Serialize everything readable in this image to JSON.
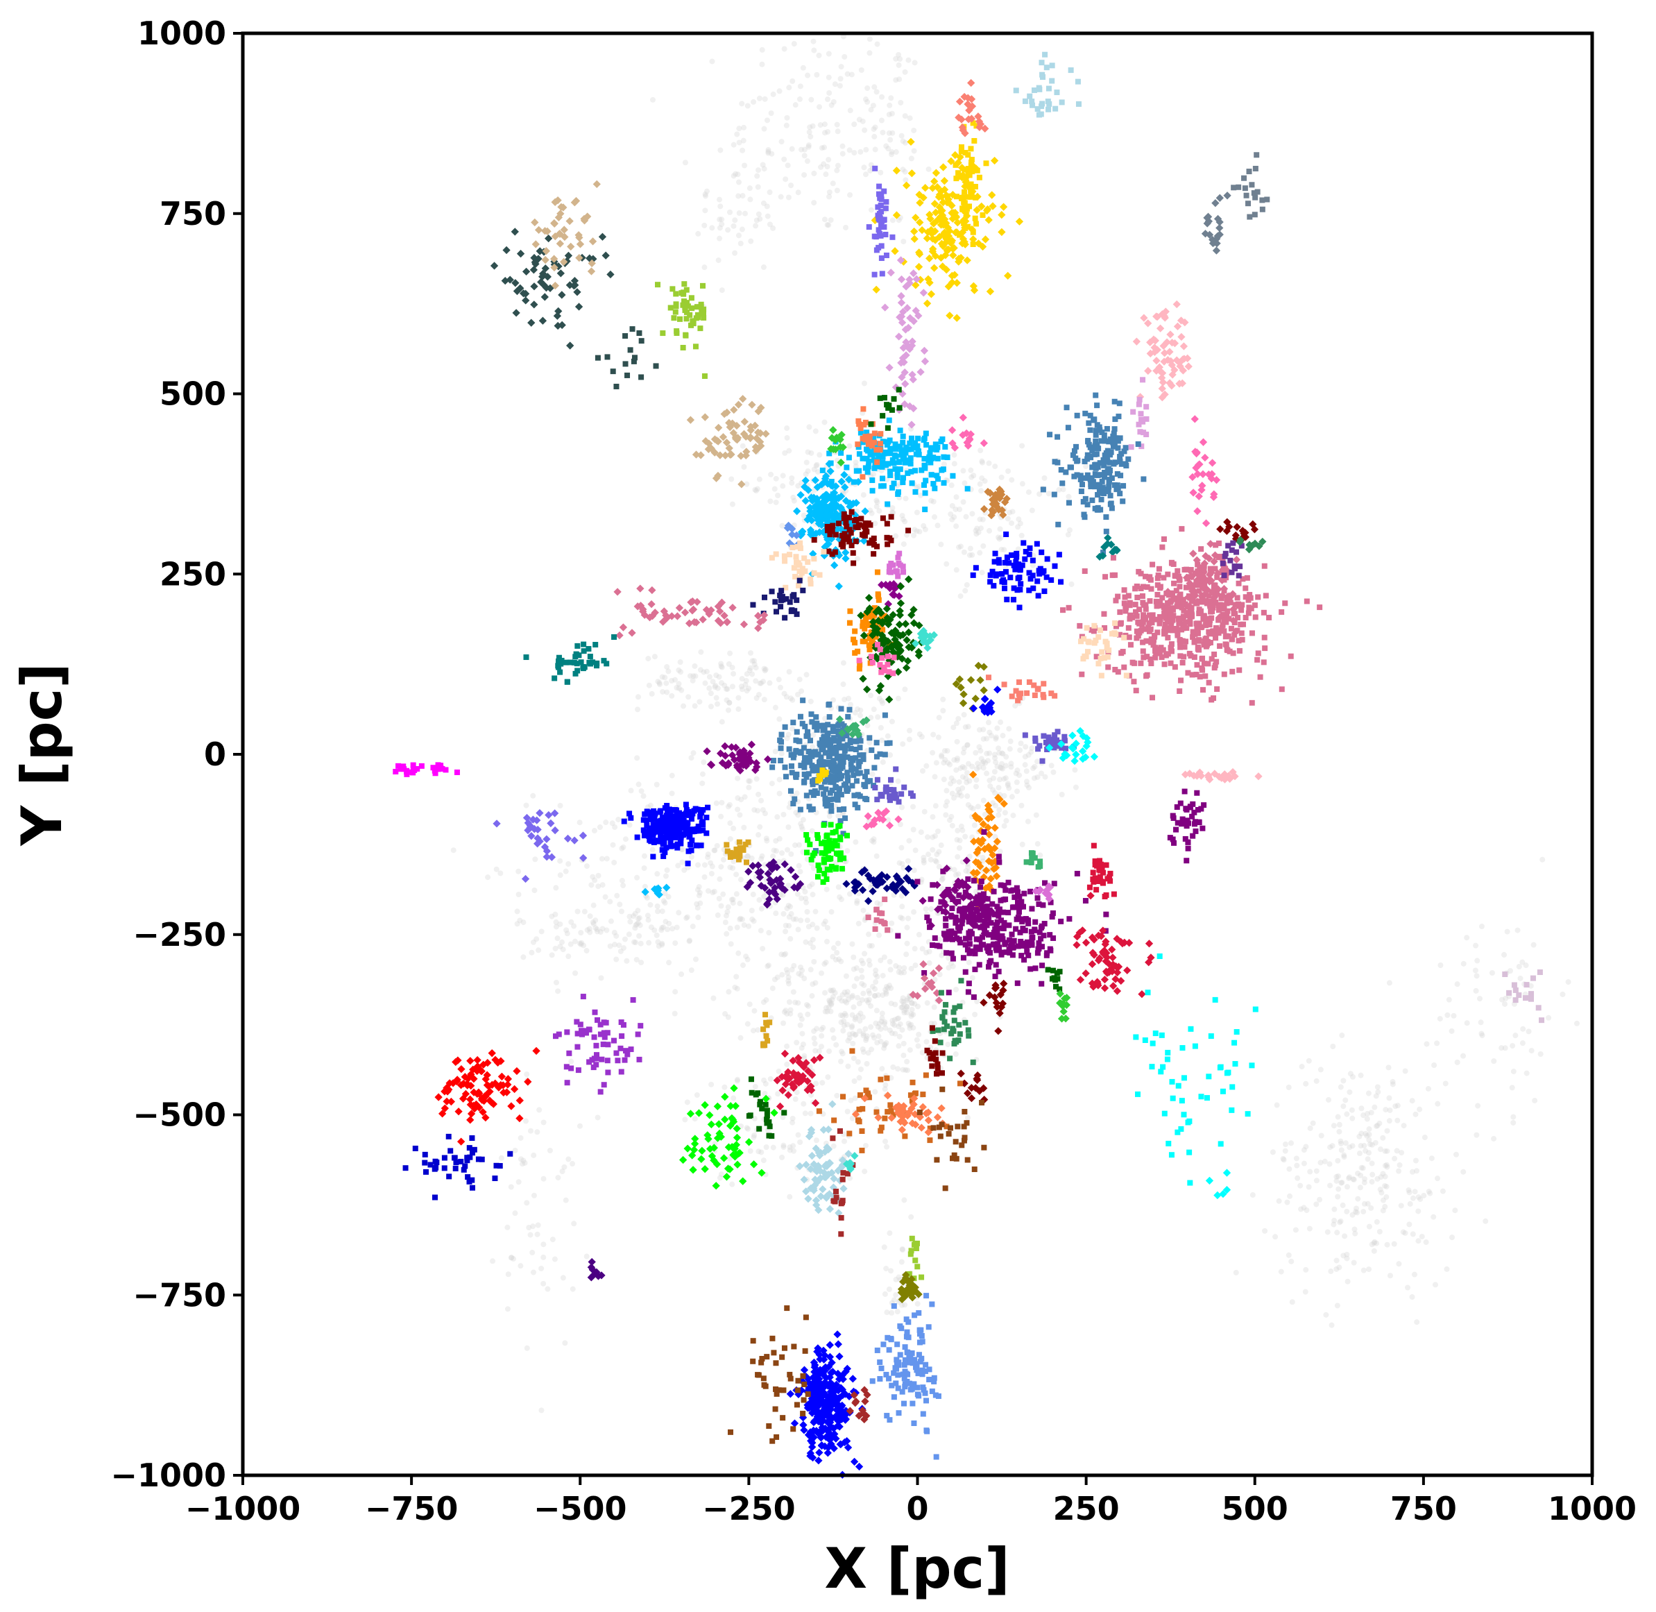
{
  "chart_data": {
    "type": "scatter",
    "xlabel": "X [pc]",
    "ylabel": "Y [pc]",
    "xlim": [
      -1000,
      1000
    ],
    "ylim": [
      -1000,
      1000
    ],
    "xticks": [
      -1000,
      -750,
      -500,
      -250,
      0,
      250,
      500,
      750,
      1000
    ],
    "yticks": [
      -1000,
      -750,
      -500,
      -250,
      0,
      250,
      500,
      750,
      1000
    ],
    "xtick_labels": [
      "−1000",
      "−750",
      "−500",
      "−250",
      "0",
      "250",
      "500",
      "750",
      "1000"
    ],
    "ytick_labels": [
      "−1000",
      "−750",
      "−500",
      "−250",
      "0",
      "250",
      "500",
      "750",
      "1000"
    ],
    "grid": false,
    "legend": "none",
    "background_field": {
      "color": "#d3d3d3",
      "regions": [
        {
          "cx": -150,
          "cy": 870,
          "sx": 60,
          "sy": 80,
          "n": 120
        },
        {
          "cx": -40,
          "cy": 850,
          "sx": 25,
          "sy": 80,
          "n": 60
        },
        {
          "cx": -270,
          "cy": 760,
          "sx": 30,
          "sy": 60,
          "n": 60
        },
        {
          "cx": -150,
          "cy": 380,
          "sx": 50,
          "sy": 40,
          "n": 90
        },
        {
          "cx": 0,
          "cy": 350,
          "sx": 80,
          "sy": 40,
          "n": 90
        },
        {
          "cx": 120,
          "cy": 320,
          "sx": 60,
          "sy": 40,
          "n": 70
        },
        {
          "cx": -290,
          "cy": 100,
          "sx": 60,
          "sy": 20,
          "n": 110
        },
        {
          "cx": -110,
          "cy": 30,
          "sx": 40,
          "sy": 30,
          "n": 80
        },
        {
          "cx": 100,
          "cy": -20,
          "sx": 60,
          "sy": 40,
          "n": 180
        },
        {
          "cx": -250,
          "cy": -150,
          "sx": 140,
          "sy": 70,
          "n": 360
        },
        {
          "cx": 50,
          "cy": -150,
          "sx": 40,
          "sy": 60,
          "n": 120
        },
        {
          "cx": -50,
          "cy": -360,
          "sx": 60,
          "sy": 50,
          "n": 230
        },
        {
          "cx": -150,
          "cy": -340,
          "sx": 70,
          "sy": 80,
          "n": 170
        },
        {
          "cx": -200,
          "cy": -520,
          "sx": 70,
          "sy": 40,
          "n": 80
        },
        {
          "cx": -450,
          "cy": -250,
          "sx": 70,
          "sy": 30,
          "n": 110
        },
        {
          "cx": -560,
          "cy": -620,
          "sx": 30,
          "sy": 100,
          "n": 60
        },
        {
          "cx": 660,
          "cy": -580,
          "sx": 70,
          "sy": 80,
          "n": 260
        },
        {
          "cx": 860,
          "cy": -350,
          "sx": 50,
          "sy": 70,
          "n": 70
        },
        {
          "cx": -30,
          "cy": -730,
          "sx": 15,
          "sy": 40,
          "n": 30
        }
      ]
    },
    "series": [
      {
        "color": "#ffd700",
        "cx": 45,
        "cy": 730,
        "sx": 35,
        "sy": 50,
        "n": 170
      },
      {
        "color": "#ffd700",
        "cx": 75,
        "cy": 790,
        "sx": 12,
        "sy": 40,
        "n": 60
      },
      {
        "color": "#dda0dd",
        "cx": -15,
        "cy": 580,
        "sx": 12,
        "sy": 50,
        "n": 50
      },
      {
        "color": "#7b68ee",
        "cx": -55,
        "cy": 740,
        "sx": 8,
        "sy": 40,
        "n": 40
      },
      {
        "color": "#fa8072",
        "cx": 75,
        "cy": 880,
        "sx": 15,
        "sy": 20,
        "n": 20
      },
      {
        "color": "#add8e6",
        "cx": 190,
        "cy": 920,
        "sx": 20,
        "sy": 25,
        "n": 30
      },
      {
        "color": "#708090",
        "cx": 440,
        "cy": 730,
        "sx": 10,
        "sy": 20,
        "n": 20
      },
      {
        "color": "#708090",
        "cx": 500,
        "cy": 780,
        "sx": 15,
        "sy": 20,
        "n": 18
      },
      {
        "color": "#2f4f4f",
        "cx": -550,
        "cy": 660,
        "sx": 40,
        "sy": 30,
        "n": 60
      },
      {
        "color": "#2f4f4f",
        "cx": -430,
        "cy": 550,
        "sx": 20,
        "sy": 15,
        "n": 15
      },
      {
        "color": "#d2b48c",
        "cx": -530,
        "cy": 720,
        "sx": 30,
        "sy": 25,
        "n": 40
      },
      {
        "color": "#9acd32",
        "cx": -340,
        "cy": 610,
        "sx": 15,
        "sy": 25,
        "n": 50
      },
      {
        "color": "#ffb6c1",
        "cx": 370,
        "cy": 550,
        "sx": 20,
        "sy": 30,
        "n": 60
      },
      {
        "color": "#dda0dd",
        "cx": 330,
        "cy": 460,
        "sx": 10,
        "sy": 20,
        "n": 15
      },
      {
        "color": "#d2b48c",
        "cx": -270,
        "cy": 440,
        "sx": 25,
        "sy": 25,
        "n": 60
      },
      {
        "color": "#4682b4",
        "cx": 270,
        "cy": 400,
        "sx": 25,
        "sy": 35,
        "n": 180
      },
      {
        "color": "#ff69b4",
        "cx": 420,
        "cy": 390,
        "sx": 10,
        "sy": 25,
        "n": 25
      },
      {
        "color": "#00bfff",
        "cx": -30,
        "cy": 410,
        "sx": 40,
        "sy": 20,
        "n": 170
      },
      {
        "color": "#00bfff",
        "cx": -130,
        "cy": 330,
        "sx": 20,
        "sy": 30,
        "n": 180
      },
      {
        "color": "#ff7f50",
        "cx": -70,
        "cy": 440,
        "sx": 8,
        "sy": 20,
        "n": 25
      },
      {
        "color": "#32cd32",
        "cx": -120,
        "cy": 430,
        "sx": 5,
        "sy": 15,
        "n": 12
      },
      {
        "color": "#006400",
        "cx": -40,
        "cy": 480,
        "sx": 8,
        "sy": 15,
        "n": 12
      },
      {
        "color": "#ff69b4",
        "cx": 70,
        "cy": 440,
        "sx": 15,
        "sy": 10,
        "n": 12
      },
      {
        "color": "#800000",
        "cx": -90,
        "cy": 305,
        "sx": 25,
        "sy": 15,
        "n": 70
      },
      {
        "color": "#6495ed",
        "cx": -185,
        "cy": 300,
        "sx": 8,
        "sy": 10,
        "n": 8
      },
      {
        "color": "#ffdab9",
        "cx": -175,
        "cy": 260,
        "sx": 20,
        "sy": 15,
        "n": 30
      },
      {
        "color": "#cd853f",
        "cx": 120,
        "cy": 355,
        "sx": 8,
        "sy": 12,
        "n": 25
      },
      {
        "color": "#0000ff",
        "cx": 150,
        "cy": 250,
        "sx": 30,
        "sy": 20,
        "n": 70
      },
      {
        "color": "#008080",
        "cx": 275,
        "cy": 285,
        "sx": 10,
        "sy": 8,
        "n": 10
      },
      {
        "color": "#db7093",
        "cx": 400,
        "cy": 190,
        "sx": 60,
        "sy": 40,
        "n": 520
      },
      {
        "color": "#db7093",
        "cx": 430,
        "cy": 240,
        "sx": 20,
        "sy": 20,
        "n": 60
      },
      {
        "color": "#ffdab9",
        "cx": 270,
        "cy": 150,
        "sx": 20,
        "sy": 15,
        "n": 30
      },
      {
        "color": "#800000",
        "cx": 475,
        "cy": 310,
        "sx": 10,
        "sy": 8,
        "n": 15
      },
      {
        "color": "#663399",
        "cx": 470,
        "cy": 270,
        "sx": 10,
        "sy": 15,
        "n": 15
      },
      {
        "color": "#2e8b57",
        "cx": 490,
        "cy": 290,
        "sx": 10,
        "sy": 5,
        "n": 8
      },
      {
        "color": "#da70d6",
        "cx": -35,
        "cy": 260,
        "sx": 8,
        "sy": 8,
        "n": 15
      },
      {
        "color": "#8b008b",
        "cx": -40,
        "cy": 230,
        "sx": 8,
        "sy": 8,
        "n": 12
      },
      {
        "color": "#ff8c00",
        "cx": -70,
        "cy": 170,
        "sx": 15,
        "sy": 25,
        "n": 60
      },
      {
        "color": "#006400",
        "cx": -40,
        "cy": 160,
        "sx": 20,
        "sy": 30,
        "n": 100
      },
      {
        "color": "#ff69b4",
        "cx": -55,
        "cy": 130,
        "sx": 10,
        "sy": 10,
        "n": 15
      },
      {
        "color": "#40e0d0",
        "cx": 10,
        "cy": 160,
        "sx": 10,
        "sy": 8,
        "n": 15
      },
      {
        "color": "#191970",
        "cx": -200,
        "cy": 210,
        "sx": 15,
        "sy": 12,
        "n": 25
      },
      {
        "color": "#db7093",
        "cx": -320,
        "cy": 195,
        "sx": 50,
        "sy": 15,
        "n": 50
      },
      {
        "color": "#008080",
        "cx": -500,
        "cy": 130,
        "sx": 25,
        "sy": 15,
        "n": 40
      },
      {
        "color": "#808000",
        "cx": 70,
        "cy": 100,
        "sx": 15,
        "sy": 15,
        "n": 12
      },
      {
        "color": "#fa8072",
        "cx": 170,
        "cy": 85,
        "sx": 20,
        "sy": 10,
        "n": 20
      },
      {
        "color": "#0000ff",
        "cx": 105,
        "cy": 70,
        "sx": 8,
        "sy": 12,
        "n": 15
      },
      {
        "color": "#4682b4",
        "cx": -130,
        "cy": -10,
        "sx": 30,
        "sy": 35,
        "n": 330
      },
      {
        "color": "#3cb371",
        "cx": -95,
        "cy": 40,
        "sx": 10,
        "sy": 8,
        "n": 15
      },
      {
        "color": "#ffd700",
        "cx": -140,
        "cy": -30,
        "sx": 5,
        "sy": 5,
        "n": 8
      },
      {
        "color": "#800080",
        "cx": -270,
        "cy": -5,
        "sx": 20,
        "sy": 8,
        "n": 40
      },
      {
        "color": "#6a5acd",
        "cx": -35,
        "cy": -50,
        "sx": 15,
        "sy": 10,
        "n": 25
      },
      {
        "color": "#ff69b4",
        "cx": -60,
        "cy": -90,
        "sx": 12,
        "sy": 8,
        "n": 12
      },
      {
        "color": "#6a5acd",
        "cx": 200,
        "cy": 15,
        "sx": 20,
        "sy": 8,
        "n": 30
      },
      {
        "color": "#00ffff",
        "cx": 230,
        "cy": 10,
        "sx": 15,
        "sy": 10,
        "n": 20
      },
      {
        "color": "#ff00ff",
        "cx": -740,
        "cy": -20,
        "sx": 25,
        "sy": 4,
        "n": 25
      },
      {
        "color": "#7b68ee",
        "cx": -560,
        "cy": -110,
        "sx": 30,
        "sy": 20,
        "n": 30
      },
      {
        "color": "#0000ff",
        "cx": -365,
        "cy": -100,
        "sx": 25,
        "sy": 15,
        "n": 230
      },
      {
        "color": "#00bfff",
        "cx": -380,
        "cy": -190,
        "sx": 8,
        "sy": 5,
        "n": 8
      },
      {
        "color": "#daa520",
        "cx": -265,
        "cy": -135,
        "sx": 10,
        "sy": 8,
        "n": 25
      },
      {
        "color": "#4b0082",
        "cx": -210,
        "cy": -180,
        "sx": 20,
        "sy": 15,
        "n": 40
      },
      {
        "color": "#00ff00",
        "cx": -135,
        "cy": -135,
        "sx": 15,
        "sy": 20,
        "n": 60
      },
      {
        "color": "#000080",
        "cx": -50,
        "cy": -180,
        "sx": 25,
        "sy": 12,
        "n": 40
      },
      {
        "color": "#db7093",
        "cx": -60,
        "cy": -225,
        "sx": 8,
        "sy": 10,
        "n": 12
      },
      {
        "color": "#ff8c00",
        "cx": 100,
        "cy": -130,
        "sx": 12,
        "sy": 40,
        "n": 50
      },
      {
        "color": "#800080",
        "cx": 120,
        "cy": -240,
        "sx": 50,
        "sy": 35,
        "n": 300
      },
      {
        "color": "#800080",
        "cx": 60,
        "cy": -200,
        "sx": 20,
        "sy": 20,
        "n": 40
      },
      {
        "color": "#3cb371",
        "cx": 175,
        "cy": -150,
        "sx": 8,
        "sy": 8,
        "n": 10
      },
      {
        "color": "#da70d6",
        "cx": 190,
        "cy": -190,
        "sx": 10,
        "sy": 5,
        "n": 10
      },
      {
        "color": "#dc143c",
        "cx": 270,
        "cy": -170,
        "sx": 10,
        "sy": 15,
        "n": 30
      },
      {
        "color": "#dc143c",
        "cx": 280,
        "cy": -280,
        "sx": 20,
        "sy": 25,
        "n": 60
      },
      {
        "color": "#800080",
        "cx": 400,
        "cy": -90,
        "sx": 12,
        "sy": 20,
        "n": 40
      },
      {
        "color": "#ffb6c1",
        "cx": 440,
        "cy": -30,
        "sx": 25,
        "sy": 3,
        "n": 20
      },
      {
        "color": "#006400",
        "cx": 205,
        "cy": -310,
        "sx": 5,
        "sy": 10,
        "n": 10
      },
      {
        "color": "#32cd32",
        "cx": 215,
        "cy": -350,
        "sx": 5,
        "sy": 12,
        "n": 12
      },
      {
        "color": "#d8bfd8",
        "cx": 900,
        "cy": -320,
        "sx": 15,
        "sy": 20,
        "n": 15
      },
      {
        "color": "#db7093",
        "cx": 20,
        "cy": -320,
        "sx": 10,
        "sy": 15,
        "n": 12
      },
      {
        "color": "#2e8b57",
        "cx": 50,
        "cy": -370,
        "sx": 12,
        "sy": 20,
        "n": 30
      },
      {
        "color": "#800000",
        "cx": 115,
        "cy": -345,
        "sx": 10,
        "sy": 15,
        "n": 15
      },
      {
        "color": "#800000",
        "cx": 25,
        "cy": -420,
        "sx": 10,
        "sy": 15,
        "n": 15
      },
      {
        "color": "#800000",
        "cx": 85,
        "cy": -465,
        "sx": 10,
        "sy": 10,
        "n": 12
      },
      {
        "color": "#00ffff",
        "cx": 420,
        "cy": -470,
        "sx": 50,
        "sy": 60,
        "n": 50
      },
      {
        "color": "#00ffff",
        "cx": 440,
        "cy": -600,
        "sx": 20,
        "sy": 15,
        "n": 5
      },
      {
        "color": "#9932cc",
        "cx": -470,
        "cy": -410,
        "sx": 30,
        "sy": 25,
        "n": 60
      },
      {
        "color": "#ff0000",
        "cx": -650,
        "cy": -460,
        "sx": 30,
        "sy": 25,
        "n": 90
      },
      {
        "color": "#0000cd",
        "cx": -690,
        "cy": -570,
        "sx": 35,
        "sy": 18,
        "n": 40
      },
      {
        "color": "#4b0082",
        "cx": -475,
        "cy": -715,
        "sx": 5,
        "sy": 8,
        "n": 8
      },
      {
        "color": "#daa520",
        "cx": -225,
        "cy": -390,
        "sx": 5,
        "sy": 15,
        "n": 10
      },
      {
        "color": "#dc143c",
        "cx": -175,
        "cy": -450,
        "sx": 15,
        "sy": 15,
        "n": 40
      },
      {
        "color": "#006400",
        "cx": -230,
        "cy": -500,
        "sx": 10,
        "sy": 25,
        "n": 20
      },
      {
        "color": "#00ff00",
        "cx": -290,
        "cy": -530,
        "sx": 25,
        "sy": 30,
        "n": 60
      },
      {
        "color": "#d2691e",
        "cx": -50,
        "cy": -480,
        "sx": 40,
        "sy": 40,
        "n": 40
      },
      {
        "color": "#ff7f50",
        "cx": -10,
        "cy": -500,
        "sx": 25,
        "sy": 12,
        "n": 40
      },
      {
        "color": "#8b4513",
        "cx": 60,
        "cy": -520,
        "sx": 20,
        "sy": 25,
        "n": 25
      },
      {
        "color": "#add8e6",
        "cx": -140,
        "cy": -580,
        "sx": 15,
        "sy": 30,
        "n": 70
      },
      {
        "color": "#a52a2a",
        "cx": -110,
        "cy": -600,
        "sx": 10,
        "sy": 30,
        "n": 15
      },
      {
        "color": "#40e0d0",
        "cx": -100,
        "cy": -570,
        "sx": 5,
        "sy": 5,
        "n": 6
      },
      {
        "color": "#9acd32",
        "cx": -5,
        "cy": -700,
        "sx": 5,
        "sy": 20,
        "n": 12
      },
      {
        "color": "#808000",
        "cx": -15,
        "cy": -740,
        "sx": 8,
        "sy": 10,
        "n": 25
      },
      {
        "color": "#6495ed",
        "cx": -10,
        "cy": -850,
        "sx": 20,
        "sy": 40,
        "n": 110
      },
      {
        "color": "#0000ff",
        "cx": -135,
        "cy": -900,
        "sx": 20,
        "sy": 35,
        "n": 260
      },
      {
        "color": "#8b4513",
        "cx": -200,
        "cy": -860,
        "sx": 25,
        "sy": 50,
        "n": 40
      },
      {
        "color": "#a52a2a",
        "cx": -85,
        "cy": -910,
        "sx": 8,
        "sy": 15,
        "n": 12
      }
    ]
  }
}
